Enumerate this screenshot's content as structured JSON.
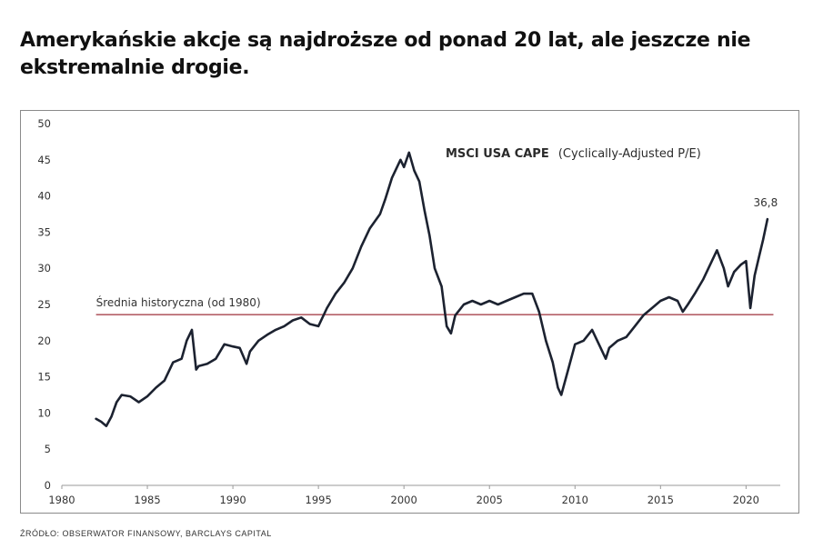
{
  "headline": "Amerykańskie akcje są najdroższe od ponad 20 lat, ale jeszcze nie ekstremalnie drogie.",
  "source": "Źródło: Obserwator Finansowy, Barclays Capital",
  "chart_data": {
    "type": "line",
    "title": "MSCI USA CAPE",
    "subtitle": "(Cyclically-Adjusted P/E)",
    "xlabel": "",
    "ylabel": "",
    "xlim": [
      1980,
      2022
    ],
    "ylim": [
      0,
      50
    ],
    "xticks": [
      1980,
      1985,
      1990,
      1995,
      2000,
      2005,
      2010,
      2015,
      2020
    ],
    "yticks": [
      0,
      5,
      10,
      15,
      20,
      25,
      30,
      35,
      40,
      45,
      50
    ],
    "grid": false,
    "legend": "none",
    "series": [
      {
        "color": "#1c2230",
        "x": [
          1982.0,
          1982.3,
          1982.6,
          1982.9,
          1983.2,
          1983.5,
          1984.0,
          1984.5,
          1985.0,
          1985.5,
          1986.0,
          1986.5,
          1987.0,
          1987.3,
          1987.6,
          1987.85,
          1988.0,
          1988.5,
          1989.0,
          1989.5,
          1990.0,
          1990.4,
          1990.8,
          1991.0,
          1991.5,
          1992.0,
          1992.5,
          1993.0,
          1993.5,
          1994.0,
          1994.5,
          1995.0,
          1995.5,
          1996.0,
          1996.5,
          1997.0,
          1997.5,
          1998.0,
          1998.6,
          1998.9,
          1999.3,
          1999.8,
          2000.0,
          2000.3,
          2000.6,
          2000.9,
          2001.2,
          2001.5,
          2001.8,
          2002.2,
          2002.5,
          2002.75,
          2003.0,
          2003.5,
          2004.0,
          2004.5,
          2005.0,
          2005.5,
          2006.0,
          2006.5,
          2007.0,
          2007.5,
          2007.9,
          2008.3,
          2008.7,
          2009.0,
          2009.2,
          2009.6,
          2010.0,
          2010.5,
          2011.0,
          2011.5,
          2011.8,
          2012.0,
          2012.5,
          2013.0,
          2013.5,
          2014.0,
          2014.5,
          2015.0,
          2015.5,
          2016.0,
          2016.3,
          2016.6,
          2017.0,
          2017.5,
          2018.0,
          2018.3,
          2018.7,
          2018.95,
          2019.3,
          2019.7,
          2020.0,
          2020.25,
          2020.5,
          2020.8,
          2021.0,
          2021.25
        ],
        "values": [
          9.2,
          8.8,
          8.2,
          9.5,
          11.5,
          12.5,
          12.3,
          11.5,
          12.3,
          13.5,
          14.5,
          17.0,
          17.5,
          20.0,
          21.5,
          16.0,
          16.5,
          16.8,
          17.5,
          19.5,
          19.2,
          19.0,
          16.8,
          18.5,
          20.0,
          20.8,
          21.5,
          22.0,
          22.8,
          23.2,
          22.3,
          22.0,
          24.5,
          26.5,
          28.0,
          30.0,
          33.0,
          35.5,
          37.5,
          39.5,
          42.5,
          45.0,
          44.0,
          46.0,
          43.5,
          42.0,
          38.0,
          34.5,
          30.0,
          27.5,
          22.0,
          21.0,
          23.5,
          25.0,
          25.5,
          25.0,
          25.5,
          25.0,
          25.5,
          26.0,
          26.5,
          26.5,
          24.0,
          20.0,
          17.0,
          13.5,
          12.5,
          16.0,
          19.5,
          20.0,
          21.5,
          19.0,
          17.5,
          19.0,
          20.0,
          20.5,
          22.0,
          23.5,
          24.5,
          25.5,
          26.0,
          25.5,
          24.0,
          25.0,
          26.5,
          28.5,
          31.0,
          32.5,
          30.0,
          27.5,
          29.5,
          30.5,
          31.0,
          24.5,
          29.0,
          32.0,
          34.0,
          36.8
        ]
      }
    ],
    "reference_line": {
      "label": "Średnia historyczna (od 1980)",
      "value": 23.6,
      "color": "#b56068"
    },
    "annotations": [
      {
        "text": "36,8",
        "x": 2021.25,
        "y": 36.8
      }
    ]
  }
}
